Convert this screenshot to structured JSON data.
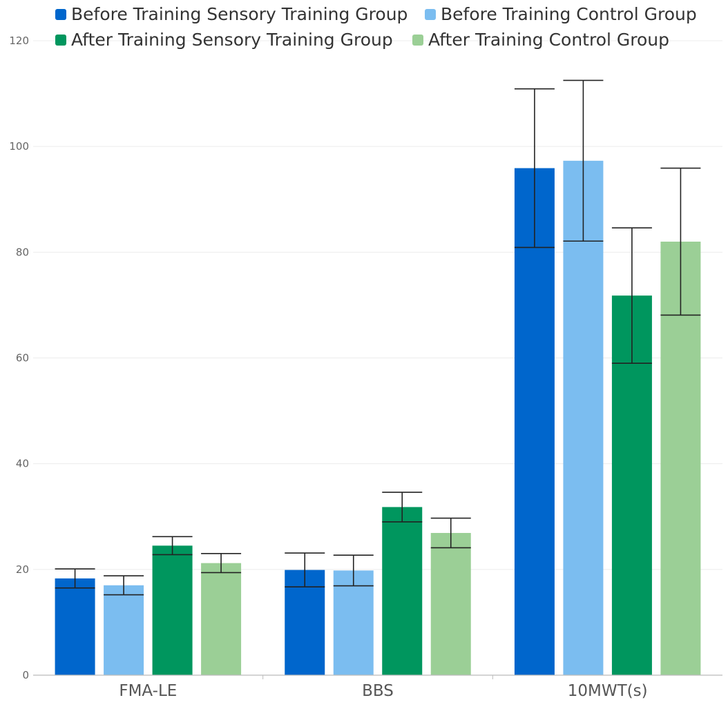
{
  "chart_data": {
    "type": "bar",
    "title": "",
    "xlabel": "",
    "ylabel": "",
    "categories": [
      "FMA-LE",
      "BBS",
      "10MWT(s)"
    ],
    "ylim": [
      0,
      120
    ],
    "yticks": [
      0,
      20,
      40,
      60,
      80,
      100,
      120
    ],
    "grid": true,
    "legend_position": "top",
    "series": [
      {
        "name": "Before Training Sensory Training Group",
        "color": "#0066cc",
        "values": [
          18.3,
          19.9,
          95.9
        ],
        "error": [
          1.8,
          3.2,
          15.0
        ]
      },
      {
        "name": "Before Training Control Group",
        "color": "#7bbdf0",
        "values": [
          17.0,
          19.8,
          97.3
        ],
        "error": [
          1.8,
          2.9,
          15.2
        ]
      },
      {
        "name": "After Training Sensory Training Group",
        "color": "#00965e",
        "values": [
          24.5,
          31.8,
          71.8
        ],
        "error": [
          1.7,
          2.8,
          12.8
        ]
      },
      {
        "name": "After Training Control Group",
        "color": "#9bcf96",
        "values": [
          21.2,
          26.9,
          82.0
        ],
        "error": [
          1.8,
          2.8,
          13.9
        ]
      }
    ]
  }
}
